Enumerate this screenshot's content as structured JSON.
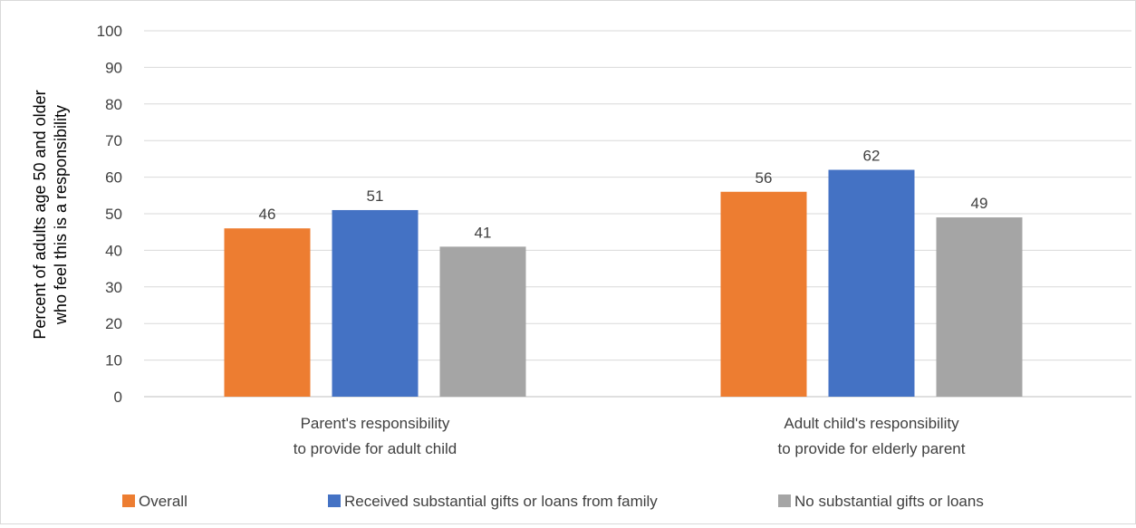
{
  "chart_data": {
    "type": "bar",
    "title": "",
    "ylabel_lines": [
      "Percent of adults age 50 and older",
      "who feel this is a responsibility"
    ],
    "xlabel": "",
    "ylim": [
      0,
      100
    ],
    "yticks": [
      0,
      10,
      20,
      30,
      40,
      50,
      60,
      70,
      80,
      90,
      100
    ],
    "grid": true,
    "legend_position": "bottom",
    "categories": [
      {
        "id": "parent",
        "lines": [
          "Parent's responsibility",
          "to provide for adult child"
        ]
      },
      {
        "id": "child",
        "lines": [
          "Adult child's responsibility",
          "to provide for elderly parent"
        ]
      }
    ],
    "series": [
      {
        "name": "Overall",
        "color": "#ed7d31",
        "values": [
          46,
          56
        ]
      },
      {
        "name": "Received substantial gifts or loans from family",
        "color": "#4472c4",
        "values": [
          51,
          62
        ]
      },
      {
        "name": "No substantial gifts or loans",
        "color": "#a5a5a5",
        "values": [
          41,
          49
        ]
      }
    ]
  }
}
